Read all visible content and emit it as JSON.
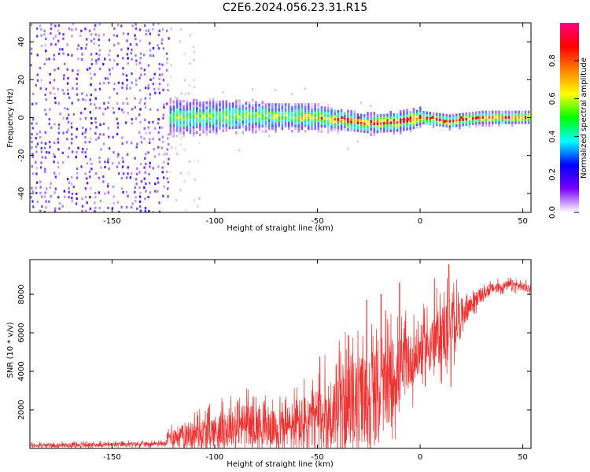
{
  "figure_title": "C2E6.2024.056.23.31.R15",
  "chart_data": [
    {
      "type": "heatmap",
      "title": "C2E6.2024.056.23.31.R15",
      "xlabel": "Height of straight line (km)",
      "ylabel": "Frequency (Hz)",
      "xlim": [
        -190,
        54
      ],
      "ylim": [
        -50,
        50
      ],
      "xticks": [
        -150,
        -100,
        -50,
        0,
        50
      ],
      "yticks": [
        -40,
        -20,
        0,
        20,
        40
      ],
      "xtick_labels": [
        "-150",
        "-100",
        "-50",
        "0",
        "50"
      ],
      "ytick_labels": [
        "-40",
        "-20",
        "0",
        "20",
        "40"
      ],
      "colorbar": {
        "label": "Normalized spectral amplitude",
        "range": [
          0,
          1
        ],
        "ticks": [
          0.0,
          0.2,
          0.4,
          0.6,
          0.8
        ],
        "tick_labels": [
          "0.0",
          "0.2",
          "0.4",
          "0.6",
          "0.8"
        ],
        "colors": [
          "#ffffff",
          "#7a00ff",
          "#0000ff",
          "#00ffff",
          "#00ff00",
          "#ffff00",
          "#ff8000",
          "#ff0000",
          "#ff0080"
        ]
      },
      "band_center_hz": [
        [
          -130,
          0
        ],
        [
          -75,
          1
        ],
        [
          -50,
          0
        ],
        [
          -25,
          -3
        ],
        [
          -10,
          -2
        ],
        [
          0,
          0
        ],
        [
          14,
          -2
        ],
        [
          30,
          0
        ],
        [
          54,
          0
        ]
      ],
      "noise_region_km": [
        -190,
        -122
      ],
      "sparse_region_km": [
        -122,
        -107
      ]
    },
    {
      "type": "line",
      "xlabel": "Height of straight line (km)",
      "ylabel": "SNR (10 * v/v)",
      "xlim": [
        -190,
        54
      ],
      "ylim": [
        0,
        9800
      ],
      "xticks": [
        -150,
        -100,
        -50,
        0,
        50
      ],
      "yticks": [
        2000,
        4000,
        6000,
        8000
      ],
      "xtick_labels": [
        "-150",
        "-100",
        "-50",
        "0",
        "50"
      ],
      "ytick_labels": [
        "2000",
        "4000",
        "6000",
        "8000"
      ],
      "color": "#ee3333",
      "series": [
        {
          "name": "SNR",
          "trend": [
            [
              -190,
              150
            ],
            [
              -150,
              200
            ],
            [
              -124,
              250
            ],
            [
              -122,
              600
            ],
            [
              -100,
              900
            ],
            [
              -85,
              1300
            ],
            [
              -70,
              1000
            ],
            [
              -55,
              1300
            ],
            [
              -45,
              1700
            ],
            [
              -35,
              2300
            ],
            [
              -25,
              2600
            ],
            [
              -18,
              3000
            ],
            [
              -10,
              4000
            ],
            [
              0,
              5000
            ],
            [
              8,
              5700
            ],
            [
              16,
              6400
            ],
            [
              22,
              7200
            ],
            [
              28,
              7800
            ],
            [
              35,
              8300
            ],
            [
              45,
              8500
            ],
            [
              54,
              8300
            ]
          ],
          "noise": [
            [
              -190,
              150
            ],
            [
              -124,
              150
            ],
            [
              -122,
              600
            ],
            [
              -110,
              1000
            ],
            [
              -85,
              1500
            ],
            [
              -70,
              1300
            ],
            [
              -50,
              2500
            ],
            [
              -35,
              3000
            ],
            [
              -25,
              3500
            ],
            [
              -15,
              3000
            ],
            [
              -5,
              2000
            ],
            [
              5,
              1800
            ],
            [
              14,
              2500
            ],
            [
              20,
              1200
            ],
            [
              30,
              400
            ],
            [
              54,
              300
            ]
          ]
        }
      ],
      "spikes": [
        [
          -26,
          7700
        ],
        [
          -19,
          8000
        ],
        [
          -10,
          8600
        ],
        [
          7,
          8800
        ],
        [
          14,
          9550
        ],
        [
          15,
          3200
        ],
        [
          -15,
          1400
        ]
      ]
    }
  ]
}
